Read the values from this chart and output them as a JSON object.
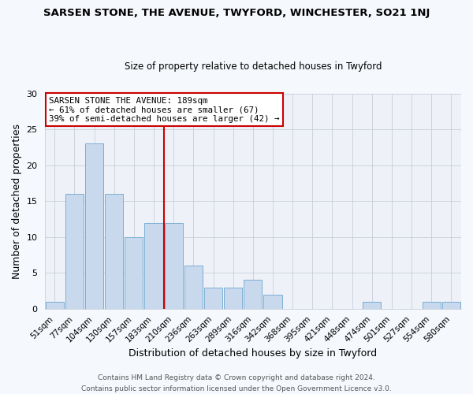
{
  "title": "SARSEN STONE, THE AVENUE, TWYFORD, WINCHESTER, SO21 1NJ",
  "subtitle": "Size of property relative to detached houses in Twyford",
  "xlabel": "Distribution of detached houses by size in Twyford",
  "ylabel": "Number of detached properties",
  "bin_labels": [
    "51sqm",
    "77sqm",
    "104sqm",
    "130sqm",
    "157sqm",
    "183sqm",
    "210sqm",
    "236sqm",
    "263sqm",
    "289sqm",
    "316sqm",
    "342sqm",
    "368sqm",
    "395sqm",
    "421sqm",
    "448sqm",
    "474sqm",
    "501sqm",
    "527sqm",
    "554sqm",
    "580sqm"
  ],
  "bar_heights": [
    1,
    16,
    23,
    16,
    10,
    12,
    12,
    6,
    3,
    3,
    4,
    2,
    0,
    0,
    0,
    0,
    1,
    0,
    0,
    1,
    1
  ],
  "bar_color": "#c8d8ed",
  "bar_edge_color": "#7bafd4",
  "vline_color": "#cc0000",
  "vline_x": 5.5,
  "ylim": [
    0,
    30
  ],
  "yticks": [
    0,
    5,
    10,
    15,
    20,
    25,
    30
  ],
  "annotation_title": "SARSEN STONE THE AVENUE: 189sqm",
  "annotation_line1": "← 61% of detached houses are smaller (67)",
  "annotation_line2": "39% of semi-detached houses are larger (42) →",
  "annotation_box_color": "#ffffff",
  "annotation_box_edge_color": "#cc0000",
  "footer_line1": "Contains HM Land Registry data © Crown copyright and database right 2024.",
  "footer_line2": "Contains public sector information licensed under the Open Government Licence v3.0.",
  "plot_bg_color": "#eef2f8",
  "fig_bg_color": "#f5f8fc",
  "grid_color": "#c8cdd8",
  "title_fontsize": 9.5,
  "subtitle_fontsize": 8.5
}
